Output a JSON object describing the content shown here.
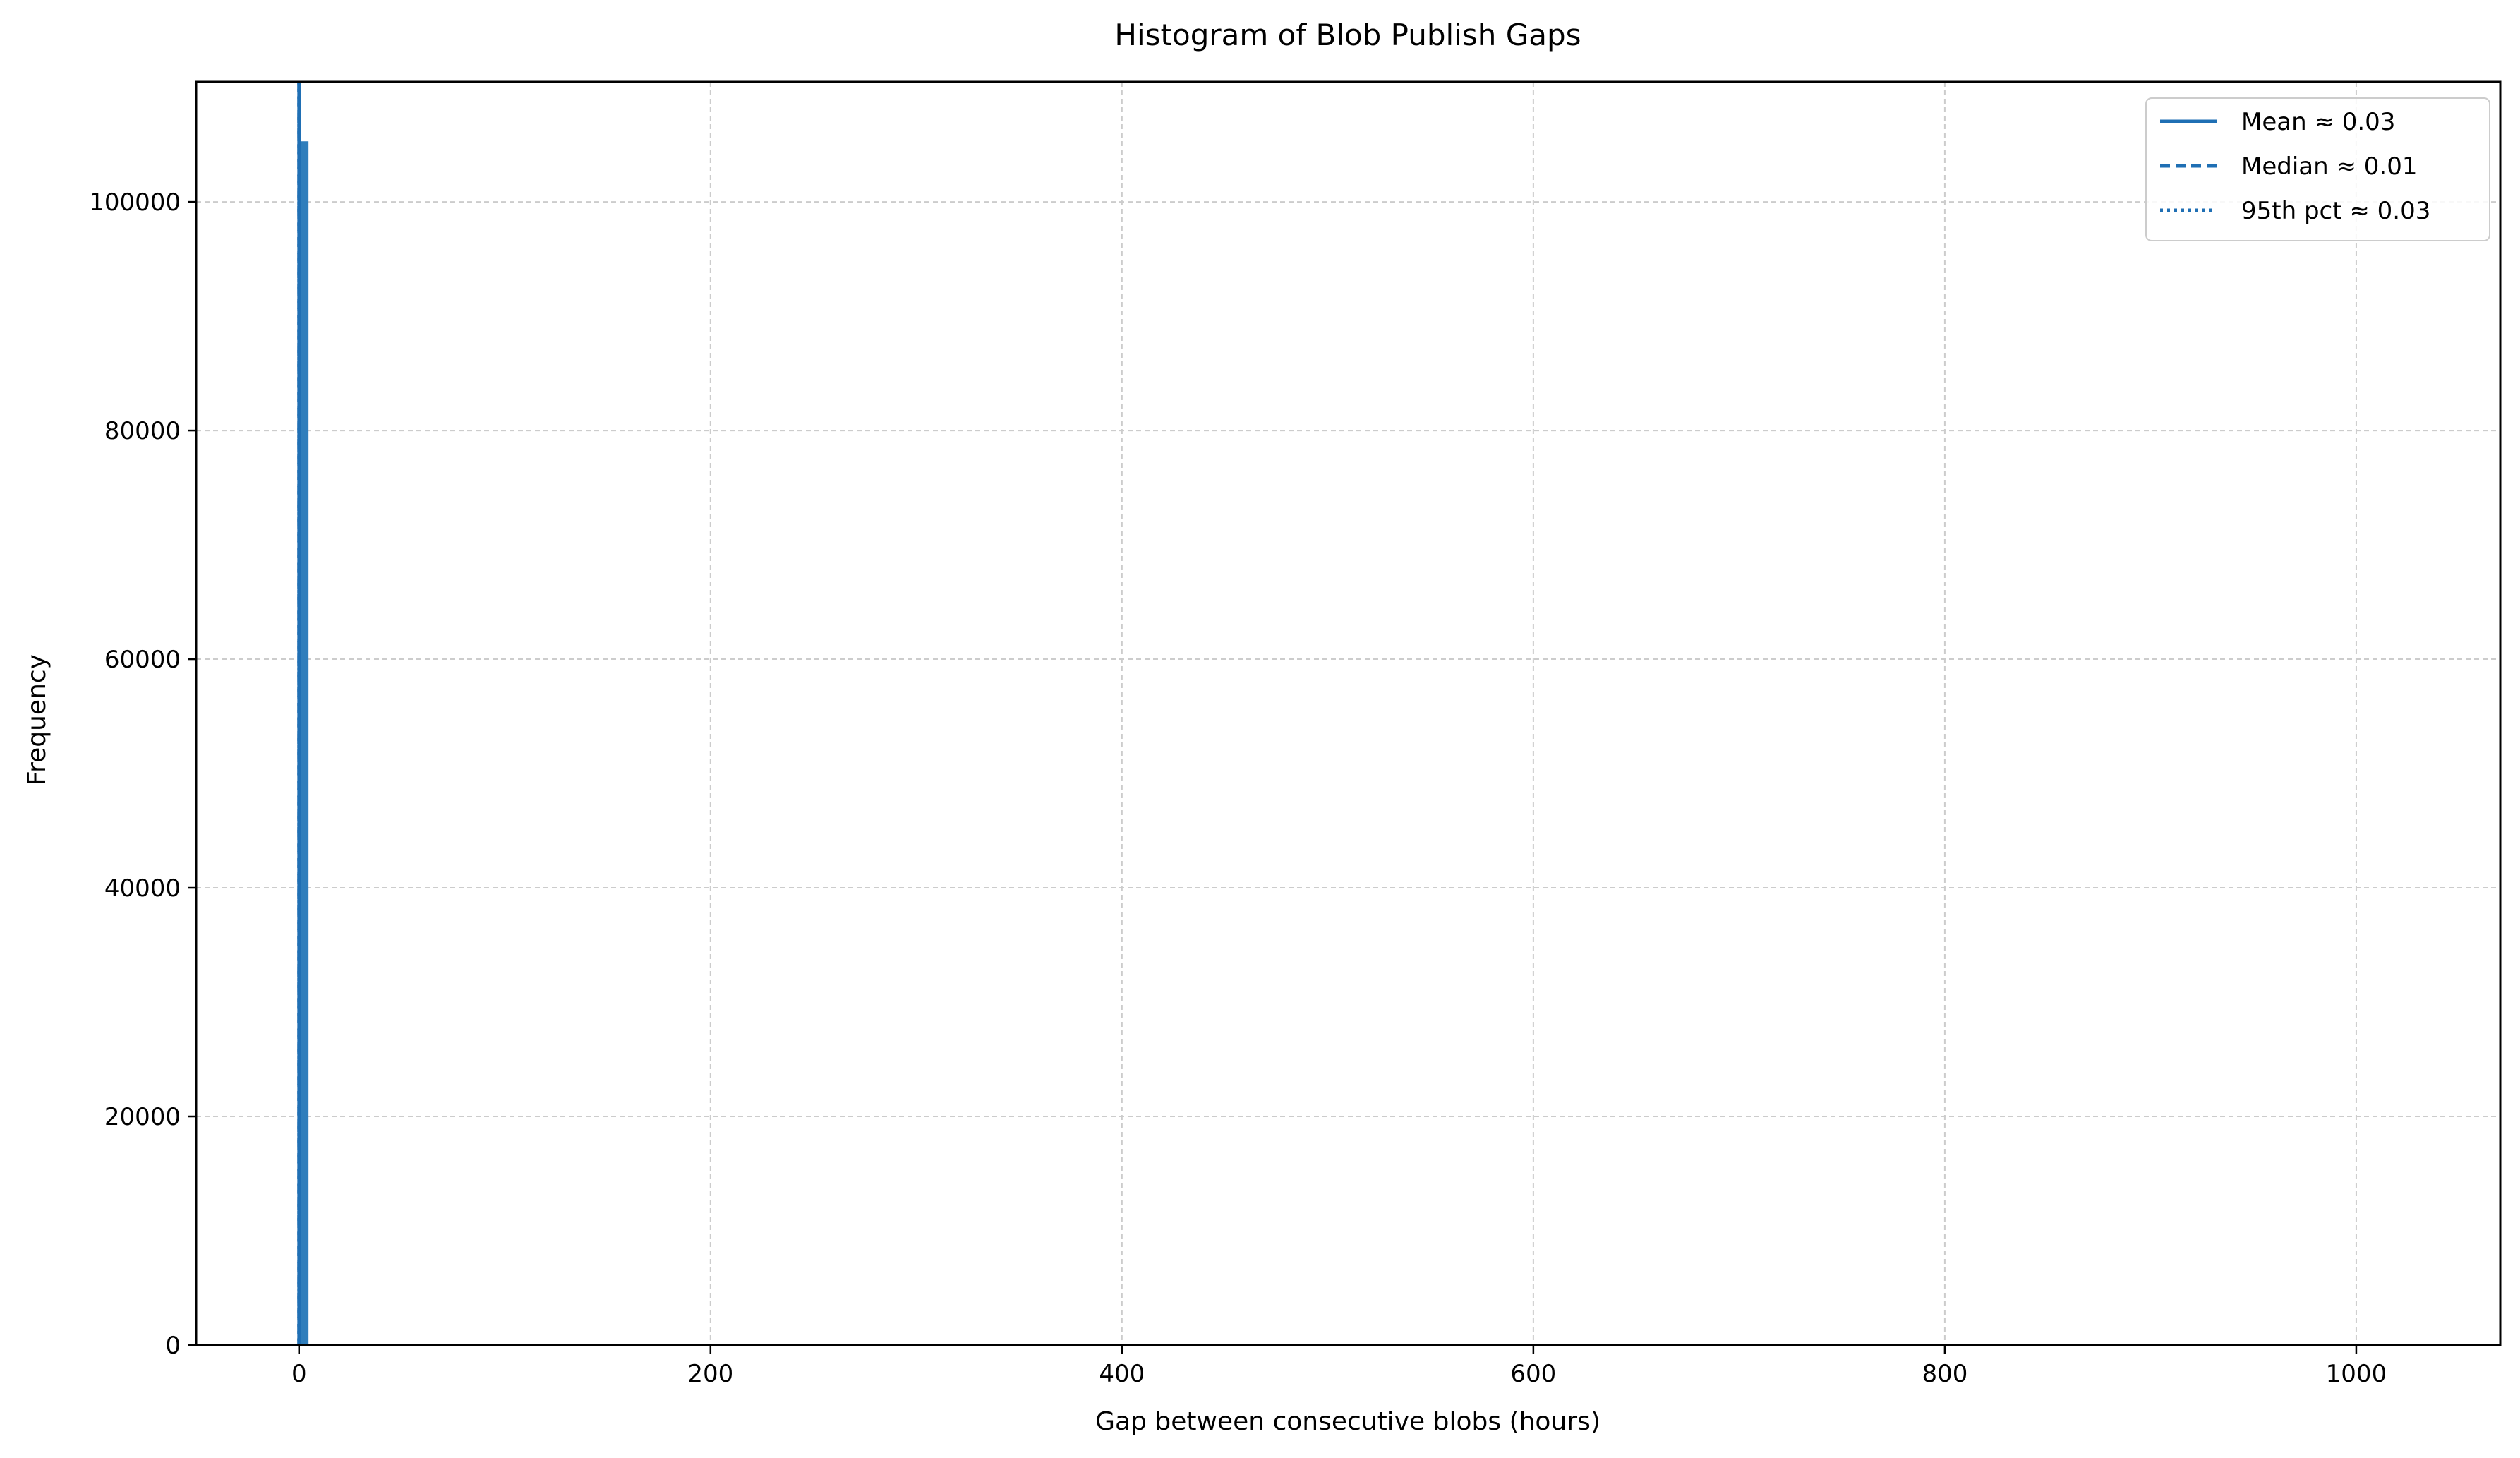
{
  "chart_data": {
    "type": "bar",
    "title": "Histogram of Blob Publish Gaps",
    "xlabel": "Gap between consecutive blobs (hours)",
    "ylabel": "Frequency",
    "xlim": [
      -50,
      1070
    ],
    "ylim": [
      0,
      110500
    ],
    "xticks": [
      0,
      200,
      400,
      600,
      800,
      1000
    ],
    "xtick_labels": [
      "0",
      "200",
      "400",
      "600",
      "800",
      "1000"
    ],
    "yticks": [
      0,
      20000,
      40000,
      60000,
      80000,
      100000
    ],
    "ytick_labels": [
      "0",
      "20000",
      "40000",
      "60000",
      "80000",
      "100000"
    ],
    "grid": true,
    "legend_position": "top-right",
    "bins": [
      {
        "x0": 0,
        "x1": 4.6,
        "value": 105300
      }
    ],
    "vlines": [
      {
        "name": "Mean ≈ 0.03",
        "x": 0.03,
        "style": "solid"
      },
      {
        "name": "Median ≈ 0.01",
        "x": 0.01,
        "style": "dashed"
      },
      {
        "name": "95th pct ≈ 0.03",
        "x": 0.03,
        "style": "dotted"
      }
    ],
    "colors": {
      "bars": "#2f7ebc",
      "lines": "#1f6fb4",
      "grid": "#cccccc",
      "axis": "#000000"
    }
  }
}
